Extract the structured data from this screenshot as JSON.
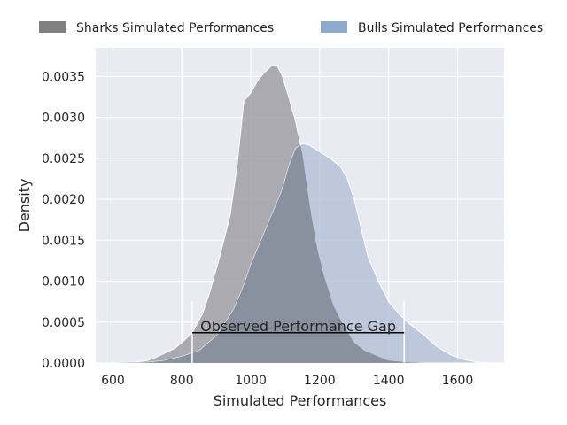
{
  "chart_data": {
    "type": "area",
    "title": "",
    "xlabel": "Simulated Performances",
    "ylabel": "Density",
    "xlim": [
      550,
      1735
    ],
    "ylim": [
      0,
      0.00385
    ],
    "xticks": [
      "600",
      "800",
      "1000",
      "1200",
      "1400",
      "1600"
    ],
    "yticks": [
      "0.0000",
      "0.0005",
      "0.0010",
      "0.0015",
      "0.0020",
      "0.0025",
      "0.0030",
      "0.0035"
    ],
    "grid": true,
    "legend_position": "top",
    "series": [
      {
        "name": "Sharks Simulated Performances",
        "color": "#a09fa6",
        "legend_color": "#808080",
        "points": [
          [
            600,
            0
          ],
          [
            650,
            5e-06
          ],
          [
            700,
            3e-05
          ],
          [
            720,
            6e-05
          ],
          [
            750,
            0.00012
          ],
          [
            780,
            0.00018
          ],
          [
            800,
            0.00025
          ],
          [
            830,
            0.00037
          ],
          [
            860,
            0.0006
          ],
          [
            880,
            0.00085
          ],
          [
            910,
            0.0013
          ],
          [
            940,
            0.0018
          ],
          [
            960,
            0.0024
          ],
          [
            980,
            0.0032
          ],
          [
            1000,
            0.0033
          ],
          [
            1020,
            0.00345
          ],
          [
            1040,
            0.00355
          ],
          [
            1060,
            0.00363
          ],
          [
            1075,
            0.00364
          ],
          [
            1090,
            0.00352
          ],
          [
            1110,
            0.00325
          ],
          [
            1130,
            0.00295
          ],
          [
            1150,
            0.00255
          ],
          [
            1170,
            0.00195
          ],
          [
            1190,
            0.00145
          ],
          [
            1210,
            0.0011
          ],
          [
            1240,
            0.0007
          ],
          [
            1270,
            0.00045
          ],
          [
            1300,
            0.00025
          ],
          [
            1330,
            0.00015
          ],
          [
            1370,
            8e-05
          ],
          [
            1400,
            3e-05
          ],
          [
            1450,
            1e-05
          ],
          [
            1500,
            0
          ]
        ]
      },
      {
        "name": "Bulls Simulated Performances",
        "color": "#aebcd6",
        "legend_color": "#8eaacc",
        "points": [
          [
            600,
            0
          ],
          [
            700,
            8e-06
          ],
          [
            750,
            3e-05
          ],
          [
            800,
            8e-05
          ],
          [
            850,
            0.00015
          ],
          [
            900,
            0.00033
          ],
          [
            950,
            0.00065
          ],
          [
            980,
            0.00095
          ],
          [
            1000,
            0.0012
          ],
          [
            1030,
            0.0015
          ],
          [
            1060,
            0.0018
          ],
          [
            1090,
            0.0021
          ],
          [
            1110,
            0.0024
          ],
          [
            1130,
            0.00262
          ],
          [
            1150,
            0.00268
          ],
          [
            1170,
            0.00266
          ],
          [
            1200,
            0.00258
          ],
          [
            1230,
            0.0025
          ],
          [
            1260,
            0.0024
          ],
          [
            1280,
            0.00225
          ],
          [
            1300,
            0.002
          ],
          [
            1320,
            0.00165
          ],
          [
            1340,
            0.0013
          ],
          [
            1370,
            0.001
          ],
          [
            1400,
            0.00075
          ],
          [
            1430,
            0.0006
          ],
          [
            1460,
            0.00048
          ],
          [
            1500,
            0.00035
          ],
          [
            1540,
            0.0002
          ],
          [
            1580,
            0.0001
          ],
          [
            1620,
            4e-05
          ],
          [
            1660,
            1e-05
          ],
          [
            1690,
            0
          ]
        ]
      }
    ],
    "annotation": {
      "text": "Observed Performance Gap",
      "x_start": 830,
      "x_end": 1445,
      "y": 0.00037,
      "tick_top": 0.00076
    }
  },
  "colors": {
    "background": "#eaeaf2",
    "grid": "#ffffff",
    "overlap": "#858c99"
  }
}
